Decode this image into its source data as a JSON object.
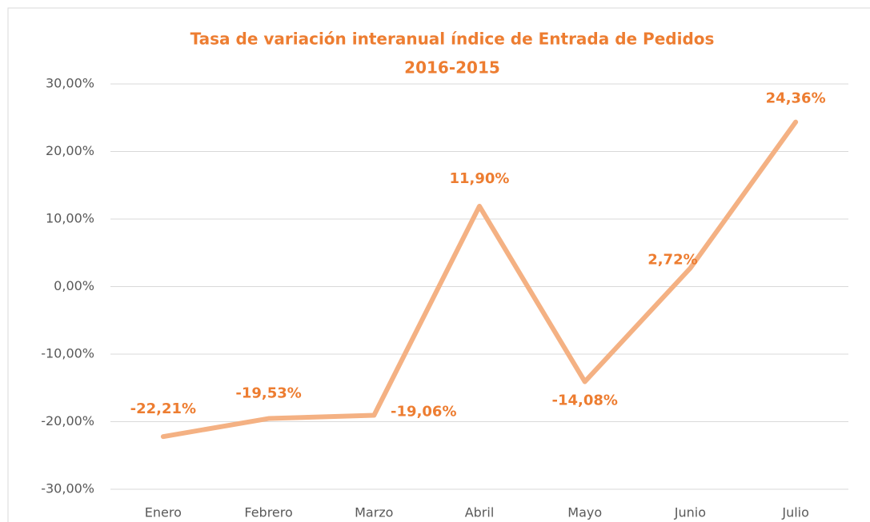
{
  "chart_data": {
    "type": "line",
    "title": "Tasa de variación interanual índice de Entrada de Pedidos",
    "subtitle": "2016-2015",
    "categories": [
      "Enero",
      "Febrero",
      "Marzo",
      "Abril",
      "Mayo",
      "Junio",
      "Julio"
    ],
    "series": [
      {
        "name": "Tasa de variación",
        "color": "#f4b183",
        "values": [
          -22.21,
          -19.53,
          -19.06,
          11.9,
          -14.08,
          2.72,
          24.36
        ],
        "value_labels": [
          "-22,21%",
          "-19,53%",
          "-19,06%",
          "11,90%",
          "-14,08%",
          "2,72%",
          "24,36%"
        ]
      }
    ],
    "ylim": [
      -30,
      30
    ],
    "yticks": [
      {
        "value": -30,
        "label": "-30,00%"
      },
      {
        "value": -20,
        "label": "-20,00%"
      },
      {
        "value": -10,
        "label": "-10,00%"
      },
      {
        "value": 0,
        "label": "0,00%"
      },
      {
        "value": 10,
        "label": "10,00%"
      },
      {
        "value": 20,
        "label": "20,00%"
      },
      {
        "value": 30,
        "label": "30,00%"
      }
    ],
    "grid": true
  }
}
